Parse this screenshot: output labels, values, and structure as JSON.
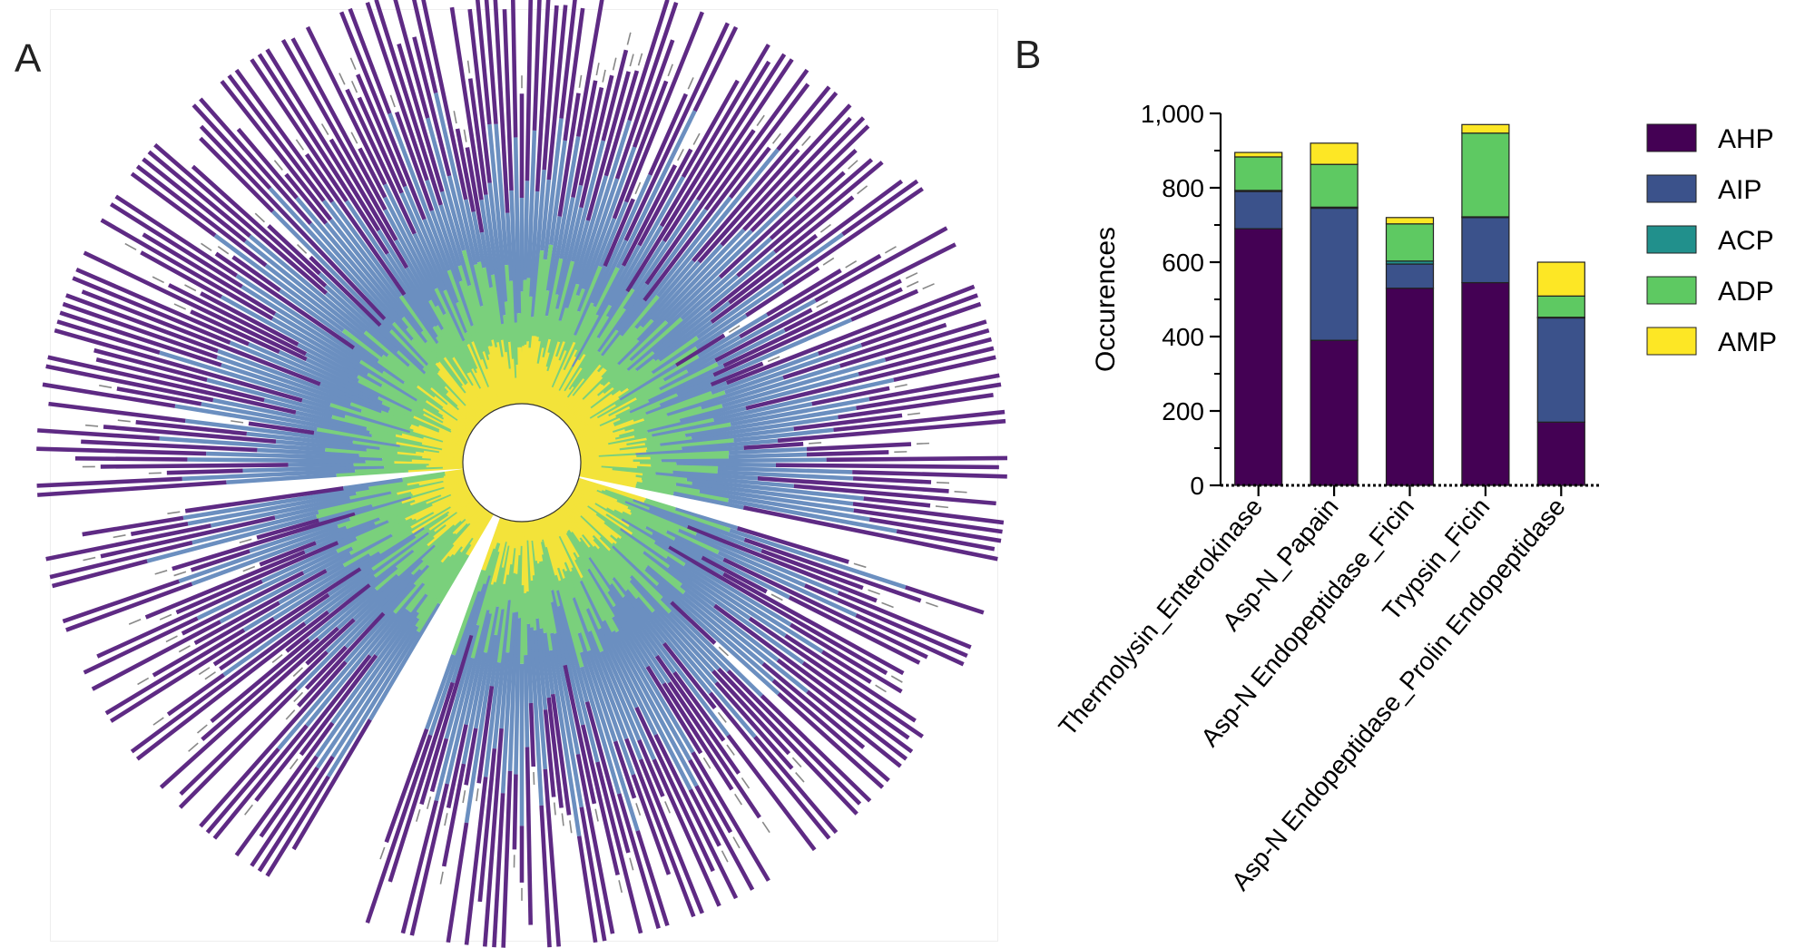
{
  "panels": {
    "a_label": "A",
    "b_label": "B"
  },
  "chart_data": [
    {
      "type": "bar",
      "layout": "circular",
      "panel": "A",
      "stacked": true,
      "title": "",
      "series_order": [
        "AHP",
        "AIP",
        "ACP",
        "ADP",
        "AMP"
      ],
      "colors": {
        "AHP": "#5e2a84",
        "AIP": "#6b8fc0",
        "ACP": "#1f9e89",
        "ADP": "#7ad07c",
        "AMP": "#f3e33a"
      },
      "grid": false,
      "legend": "none",
      "label_pattern": "cluster_index",
      "note": "Circular stacked bar dendrogram; individual leaf values are not legible at this resolution."
    },
    {
      "type": "bar",
      "stacked": true,
      "panel": "B",
      "title": "",
      "xlabel": "",
      "ylabel": "Occurences",
      "ylim": [
        0,
        1000
      ],
      "yticks": [
        0,
        200,
        400,
        600,
        800,
        1000
      ],
      "ytick_labels": [
        "0",
        "200",
        "400",
        "600",
        "800",
        "1,000"
      ],
      "categories": [
        "Thermolysin_Enterokinase",
        "Asp-N_Papain",
        "Asp-N Endopeptidase_Ficin",
        "Trypsin_Ficin",
        "Asp-N Endopeptidase_Prolin Endopeptidase"
      ],
      "series": [
        {
          "name": "AHP",
          "color": "#440154",
          "values": [
            690,
            390,
            530,
            545,
            170
          ]
        },
        {
          "name": "AIP",
          "color": "#3b528b",
          "values": [
            100,
            355,
            65,
            175,
            280
          ]
        },
        {
          "name": "ACP",
          "color": "#21908c",
          "values": [
            3,
            3,
            8,
            2,
            2
          ]
        },
        {
          "name": "ADP",
          "color": "#5ec962",
          "values": [
            90,
            115,
            100,
            225,
            57
          ]
        },
        {
          "name": "AMP",
          "color": "#fde725",
          "values": [
            12,
            57,
            17,
            23,
            91
          ]
        }
      ],
      "grid": false,
      "legend": "right"
    }
  ]
}
